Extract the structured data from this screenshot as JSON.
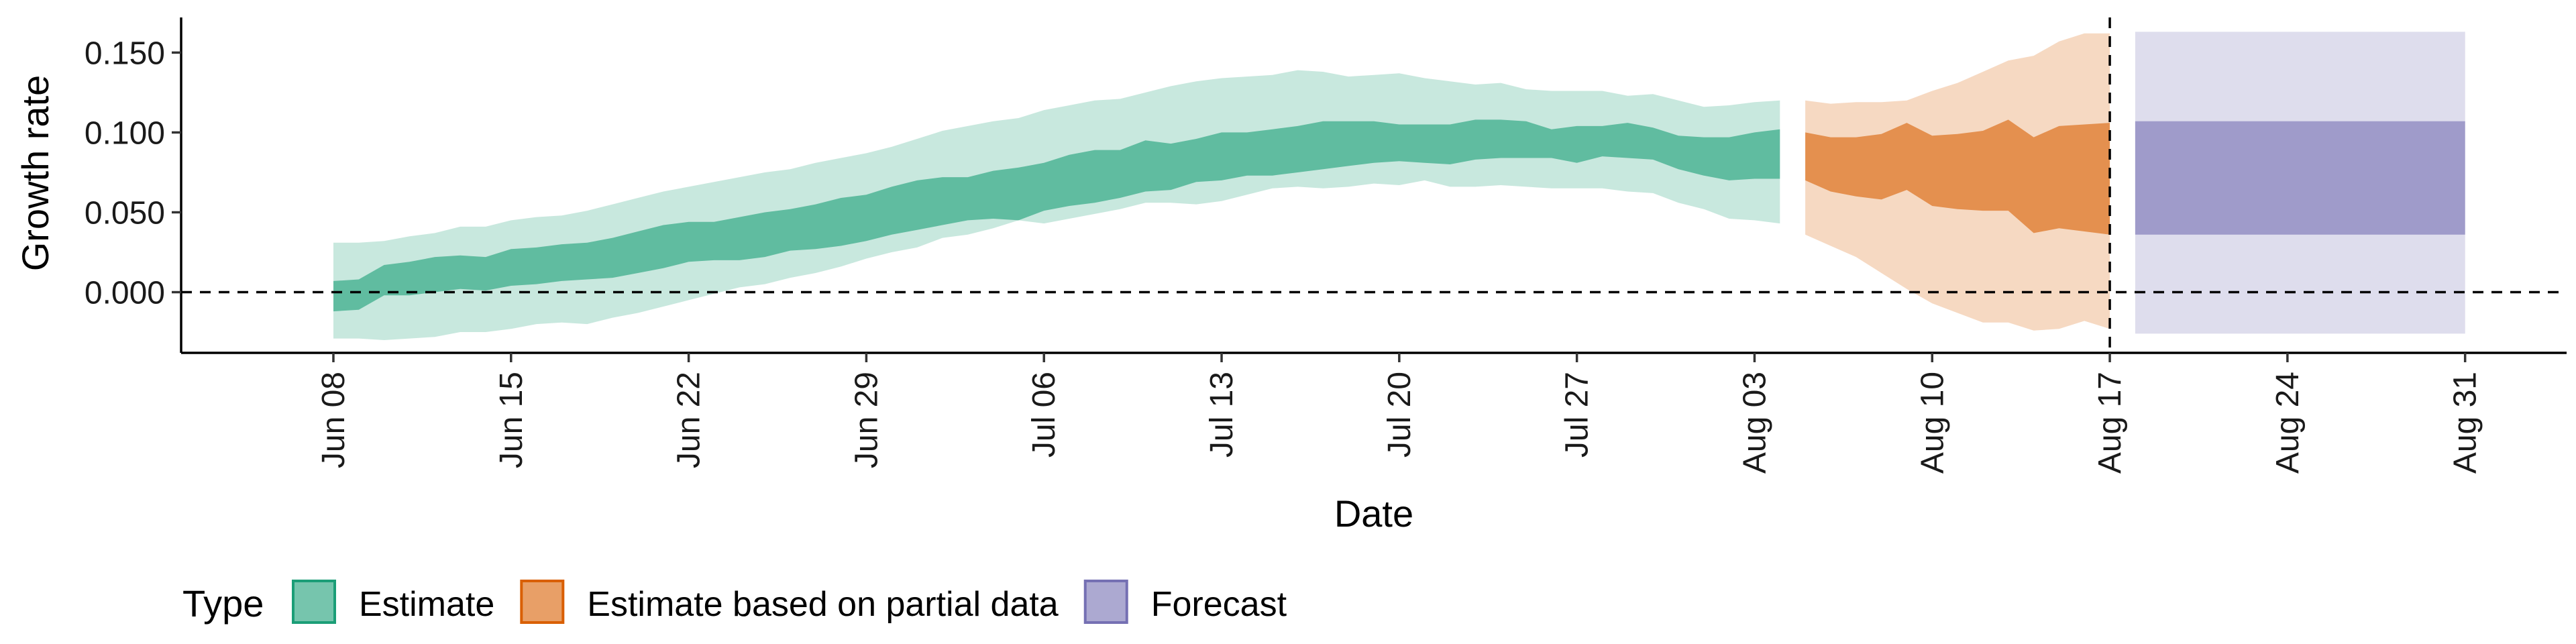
{
  "chart_data": {
    "type": "area",
    "xlabel": "Date",
    "ylabel": "Growth rate",
    "x_type": "date",
    "xlim": [
      "2020-06-02",
      "2020-09-04"
    ],
    "ylim": [
      -0.038,
      0.172
    ],
    "y_ticks": [
      {
        "value": 0.0,
        "label": "0.000"
      },
      {
        "value": 0.05,
        "label": "0.050"
      },
      {
        "value": 0.1,
        "label": "0.100"
      },
      {
        "value": 0.15,
        "label": "0.150"
      }
    ],
    "x_ticks": [
      {
        "date": "2020-06-08",
        "label": "Jun 08"
      },
      {
        "date": "2020-06-15",
        "label": "Jun 15"
      },
      {
        "date": "2020-06-22",
        "label": "Jun 22"
      },
      {
        "date": "2020-06-29",
        "label": "Jun 29"
      },
      {
        "date": "2020-07-06",
        "label": "Jul 06"
      },
      {
        "date": "2020-07-13",
        "label": "Jul 13"
      },
      {
        "date": "2020-07-20",
        "label": "Jul 20"
      },
      {
        "date": "2020-07-27",
        "label": "Jul 27"
      },
      {
        "date": "2020-08-03",
        "label": "Aug 03"
      },
      {
        "date": "2020-08-10",
        "label": "Aug 10"
      },
      {
        "date": "2020-08-17",
        "label": "Aug 17"
      },
      {
        "date": "2020-08-24",
        "label": "Aug 24"
      },
      {
        "date": "2020-08-31",
        "label": "Aug 31"
      }
    ],
    "reference_lines": [
      {
        "axis": "y",
        "value": 0,
        "style": "dashed"
      },
      {
        "axis": "x",
        "value": "2020-08-17",
        "style": "dashed"
      }
    ],
    "grid": false,
    "legend": {
      "title": "Type",
      "position": "bottom-left",
      "entries": [
        {
          "label": "Estimate",
          "color": "#1b9e77"
        },
        {
          "label": "Estimate based on partial data",
          "color": "#d95f02"
        },
        {
          "label": "Forecast",
          "color": "#7570b3"
        }
      ]
    },
    "series": [
      {
        "name": "Estimate",
        "color": "#1b9e77",
        "dates": [
          "2020-06-08",
          "2020-06-09",
          "2020-06-10",
          "2020-06-11",
          "2020-06-12",
          "2020-06-13",
          "2020-06-14",
          "2020-06-15",
          "2020-06-16",
          "2020-06-17",
          "2020-06-18",
          "2020-06-19",
          "2020-06-20",
          "2020-06-21",
          "2020-06-22",
          "2020-06-23",
          "2020-06-24",
          "2020-06-25",
          "2020-06-26",
          "2020-06-27",
          "2020-06-28",
          "2020-06-29",
          "2020-06-30",
          "2020-07-01",
          "2020-07-02",
          "2020-07-03",
          "2020-07-04",
          "2020-07-05",
          "2020-07-06",
          "2020-07-07",
          "2020-07-08",
          "2020-07-09",
          "2020-07-10",
          "2020-07-11",
          "2020-07-12",
          "2020-07-13",
          "2020-07-14",
          "2020-07-15",
          "2020-07-16",
          "2020-07-17",
          "2020-07-18",
          "2020-07-19",
          "2020-07-20",
          "2020-07-21",
          "2020-07-22",
          "2020-07-23",
          "2020-07-24",
          "2020-07-25",
          "2020-07-26",
          "2020-07-27",
          "2020-07-28",
          "2020-07-29",
          "2020-07-30",
          "2020-07-31",
          "2020-08-01",
          "2020-08-02",
          "2020-08-03",
          "2020-08-04"
        ],
        "outer_lower": [
          -0.029,
          -0.029,
          -0.03,
          -0.029,
          -0.028,
          -0.025,
          -0.025,
          -0.023,
          -0.02,
          -0.019,
          -0.02,
          -0.016,
          -0.013,
          -0.009,
          -0.005,
          -0.001,
          0.003,
          0.005,
          0.009,
          0.012,
          0.016,
          0.021,
          0.025,
          0.028,
          0.034,
          0.036,
          0.04,
          0.045,
          0.043,
          0.046,
          0.049,
          0.052,
          0.056,
          0.056,
          0.055,
          0.057,
          0.061,
          0.065,
          0.066,
          0.065,
          0.066,
          0.068,
          0.067,
          0.07,
          0.066,
          0.066,
          0.067,
          0.066,
          0.065,
          0.065,
          0.065,
          0.063,
          0.062,
          0.056,
          0.052,
          0.046,
          0.045,
          0.043
        ],
        "inner_lower": [
          -0.012,
          -0.011,
          -0.002,
          -0.002,
          0.0,
          0.002,
          0.001,
          0.004,
          0.005,
          0.007,
          0.008,
          0.009,
          0.012,
          0.015,
          0.019,
          0.02,
          0.02,
          0.022,
          0.026,
          0.027,
          0.029,
          0.032,
          0.036,
          0.039,
          0.042,
          0.045,
          0.046,
          0.045,
          0.051,
          0.054,
          0.056,
          0.059,
          0.063,
          0.064,
          0.069,
          0.07,
          0.073,
          0.073,
          0.075,
          0.077,
          0.079,
          0.081,
          0.082,
          0.081,
          0.08,
          0.083,
          0.084,
          0.084,
          0.084,
          0.081,
          0.085,
          0.084,
          0.083,
          0.077,
          0.073,
          0.07,
          0.071,
          0.071
        ],
        "inner_upper": [
          0.007,
          0.008,
          0.017,
          0.019,
          0.022,
          0.023,
          0.022,
          0.027,
          0.028,
          0.03,
          0.031,
          0.034,
          0.038,
          0.042,
          0.044,
          0.044,
          0.047,
          0.05,
          0.052,
          0.055,
          0.059,
          0.061,
          0.066,
          0.07,
          0.072,
          0.072,
          0.076,
          0.078,
          0.081,
          0.086,
          0.089,
          0.089,
          0.095,
          0.093,
          0.096,
          0.1,
          0.1,
          0.102,
          0.104,
          0.107,
          0.107,
          0.107,
          0.105,
          0.105,
          0.105,
          0.108,
          0.108,
          0.107,
          0.102,
          0.104,
          0.104,
          0.106,
          0.103,
          0.098,
          0.097,
          0.097,
          0.1,
          0.102
        ],
        "outer_upper": [
          0.031,
          0.031,
          0.032,
          0.035,
          0.037,
          0.041,
          0.041,
          0.045,
          0.047,
          0.048,
          0.051,
          0.055,
          0.059,
          0.063,
          0.066,
          0.069,
          0.072,
          0.075,
          0.077,
          0.081,
          0.084,
          0.087,
          0.091,
          0.096,
          0.101,
          0.104,
          0.107,
          0.109,
          0.114,
          0.117,
          0.12,
          0.121,
          0.125,
          0.129,
          0.132,
          0.134,
          0.135,
          0.136,
          0.139,
          0.138,
          0.135,
          0.136,
          0.137,
          0.134,
          0.132,
          0.13,
          0.131,
          0.127,
          0.126,
          0.126,
          0.126,
          0.123,
          0.124,
          0.12,
          0.116,
          0.117,
          0.119,
          0.12
        ]
      },
      {
        "name": "Estimate based on partial data",
        "color": "#d95f02",
        "dates": [
          "2020-08-05",
          "2020-08-06",
          "2020-08-07",
          "2020-08-08",
          "2020-08-09",
          "2020-08-10",
          "2020-08-11",
          "2020-08-12",
          "2020-08-13",
          "2020-08-14",
          "2020-08-15",
          "2020-08-16",
          "2020-08-17"
        ],
        "outer_lower": [
          0.036,
          0.029,
          0.022,
          0.012,
          0.002,
          -0.007,
          -0.013,
          -0.019,
          -0.019,
          -0.024,
          -0.023,
          -0.018,
          -0.023
        ],
        "inner_lower": [
          0.07,
          0.063,
          0.06,
          0.058,
          0.064,
          0.054,
          0.052,
          0.051,
          0.051,
          0.037,
          0.04,
          0.038,
          0.036
        ],
        "inner_upper": [
          0.1,
          0.097,
          0.097,
          0.099,
          0.106,
          0.098,
          0.099,
          0.101,
          0.108,
          0.097,
          0.104,
          0.105,
          0.106
        ],
        "outer_upper": [
          0.12,
          0.118,
          0.119,
          0.119,
          0.12,
          0.126,
          0.131,
          0.138,
          0.145,
          0.148,
          0.157,
          0.162,
          0.162
        ]
      },
      {
        "name": "Forecast",
        "color": "#7570b3",
        "dates": [
          "2020-08-18",
          "2020-08-31"
        ],
        "outer_lower": [
          -0.026,
          -0.026
        ],
        "inner_lower": [
          0.036,
          0.036
        ],
        "inner_upper": [
          0.107,
          0.107
        ],
        "outer_upper": [
          0.163,
          0.163
        ]
      }
    ]
  }
}
